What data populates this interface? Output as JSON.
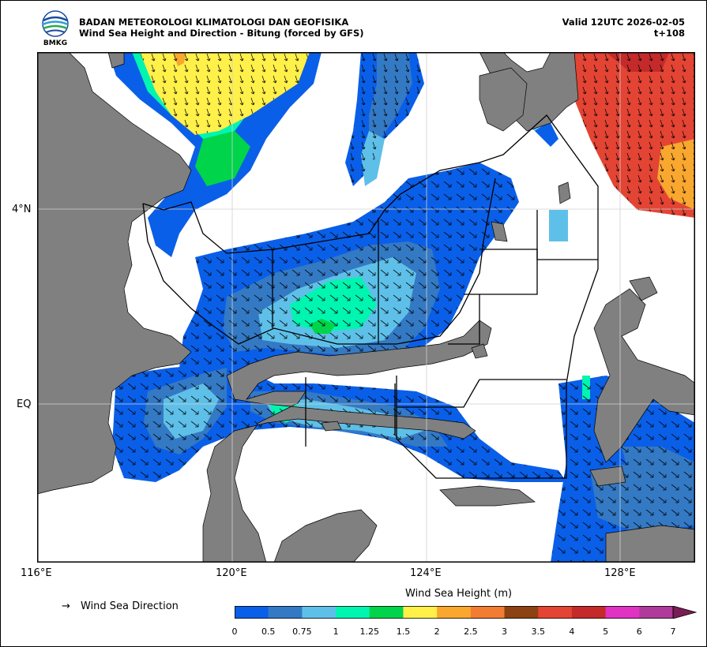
{
  "header": {
    "agency": "BADAN METEOROLOGI KLIMATOLOGI DAN GEOFISIKA",
    "product": "Wind Sea Height and Direction - Bitung (forced by GFS)",
    "valid": "Valid 12UTC 2026-02-05",
    "lead": "t+108",
    "logo_text": "BMKG"
  },
  "axes": {
    "x_ticks": [
      "116°E",
      "120°E",
      "124°E",
      "128°E"
    ],
    "y_ticks": [
      "4°N",
      "EQ"
    ]
  },
  "legend": {
    "arrow_symbol": "→",
    "label": "Wind Sea Direction"
  },
  "colorbar": {
    "title": "Wind Sea Height (m)",
    "ticks": [
      "0",
      "0.5",
      "0.75",
      "1",
      "1.25",
      "1.5",
      "2",
      "2.5",
      "3",
      "3.5",
      "4",
      "5",
      "6",
      "7"
    ],
    "colors": [
      "#0a5fe8",
      "#3479c4",
      "#5ec0e8",
      "#00f5b0",
      "#00d44a",
      "#fff04a",
      "#f9a72e",
      "#f27c32",
      "#8c4212",
      "#e34434",
      "#c42a2a",
      "#e033c4",
      "#b03a9a",
      "#7a1c55"
    ],
    "extend": "max"
  },
  "colors": {
    "land": "#808080",
    "sea_background": "#ffffff",
    "gridline": "#d0d0d0",
    "boundary": "#000000"
  }
}
